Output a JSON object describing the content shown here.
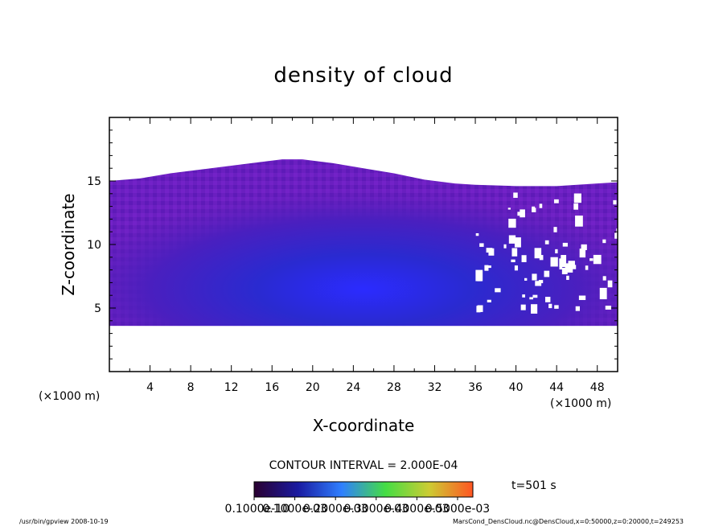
{
  "chart_data": {
    "type": "heatmap",
    "title": "density of cloud",
    "xlabel": "X-coordinate",
    "ylabel": "Z-coordinate",
    "x_unit": "(×1000 m)",
    "y_unit": "(×1000 m)",
    "xlim": [
      0,
      50
    ],
    "ylim": [
      0,
      20
    ],
    "x_ticks": [
      4,
      8,
      12,
      16,
      20,
      24,
      28,
      32,
      36,
      40,
      44,
      48
    ],
    "y_ticks": [
      5,
      10,
      15
    ],
    "cloud_base": 3.6,
    "cloud_top_profile": {
      "x": [
        0,
        3,
        6,
        9,
        12,
        15,
        17,
        19,
        22,
        25,
        28,
        31,
        34,
        36,
        40,
        44,
        48,
        50
      ],
      "z": [
        15.0,
        15.2,
        15.6,
        15.9,
        16.2,
        16.5,
        16.7,
        16.7,
        16.4,
        16.0,
        15.6,
        15.1,
        14.8,
        14.7,
        14.6,
        14.6,
        14.8,
        14.9
      ]
    },
    "contour_interval": "CONTOUR INTERVAL = 2.000E-04",
    "colorbar_labels": [
      "0.1000e-10",
      "0.1000e-03",
      "0.2000e-03",
      "0.3000e-03",
      "0.4000e-03",
      "0.5000e-03"
    ],
    "colorbar_colors": [
      "#2a0030",
      "#1a1aa0",
      "#2f7fff",
      "#44dd44",
      "#cccc33",
      "#ff5522"
    ],
    "time_label": "t=501 s",
    "footer_left": "/usr/bin/gpview   2008-10-19",
    "footer_right": "MarsCond_DensCloud.nc@DensCloud,x=0:50000,z=0:20000,t=249253"
  }
}
